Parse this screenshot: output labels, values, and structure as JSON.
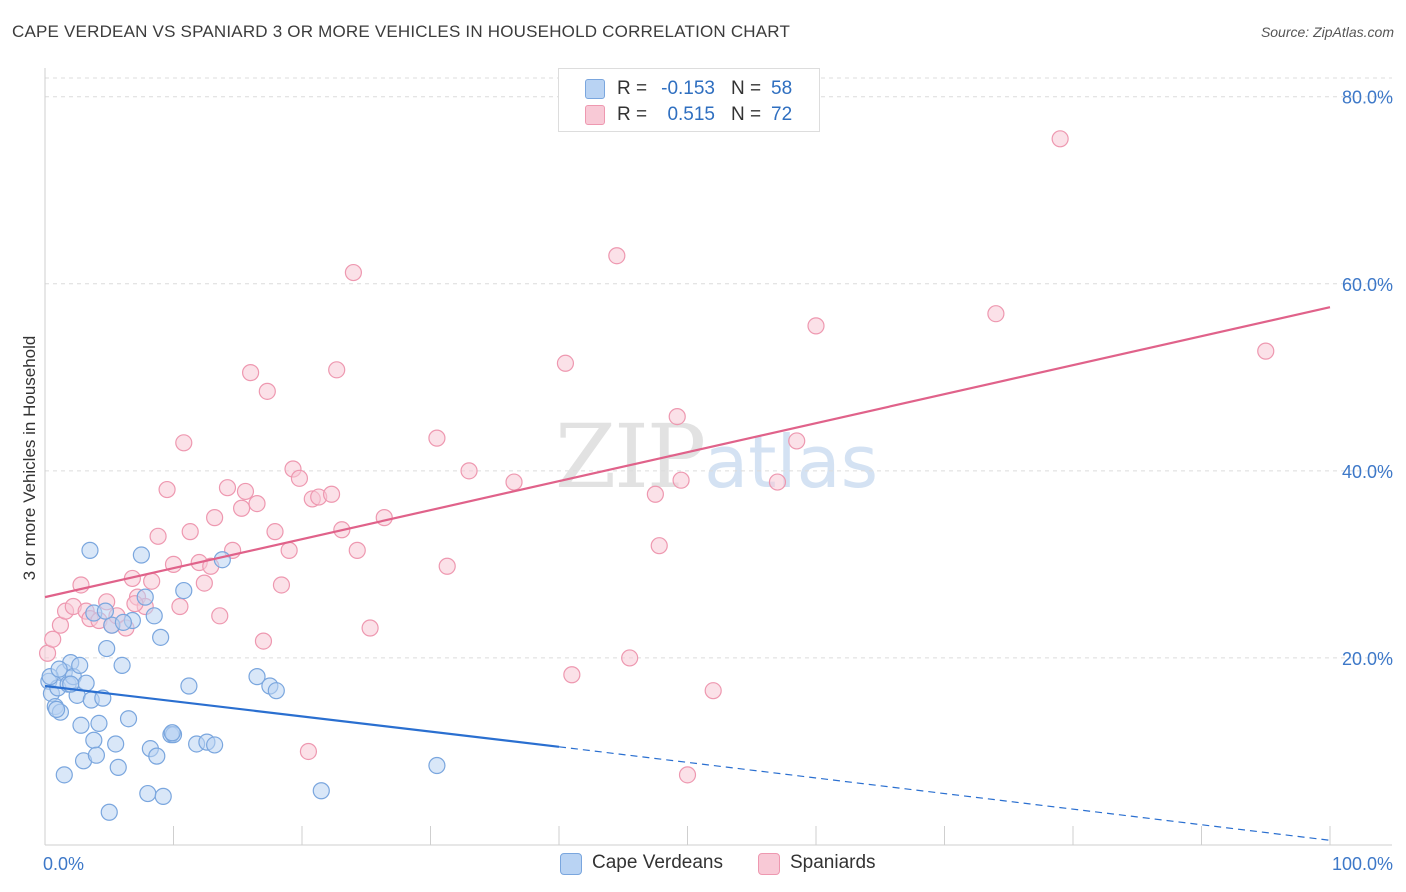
{
  "header": {
    "title": "CAPE VERDEAN VS SPANIARD 3 OR MORE VEHICLES IN HOUSEHOLD CORRELATION CHART",
    "source": "Source: ZipAtlas.com"
  },
  "watermark": {
    "zip": "ZIP",
    "atlas": "atlas"
  },
  "legend": {
    "rows": [
      {
        "r_label": "R =",
        "r_value": "-0.153",
        "n_label": "N =",
        "n_value": "58"
      },
      {
        "r_label": "R =",
        "r_value": "0.515",
        "n_label": "N =",
        "n_value": "72"
      }
    ]
  },
  "colors": {
    "blue_fill": "#b9d3f3",
    "blue_stroke": "#7aa6de",
    "blue_line": "#2a6fd0",
    "pink_fill": "#f8c9d6",
    "pink_stroke": "#ee98b0",
    "pink_line": "#e0628a",
    "axis_label": "#3d78c8",
    "grid": "#dcdcdc"
  },
  "chart_data": {
    "type": "scatter",
    "title": "CAPE VERDEAN VS SPANIARD 3 OR MORE VEHICLES IN HOUSEHOLD CORRELATION CHART",
    "xlabel": "",
    "ylabel": "3 or more Vehicles in Household",
    "xlim": [
      0,
      100
    ],
    "ylim": [
      0,
      82
    ],
    "x_tick_labels": {
      "left": "0.0%",
      "right": "100.0%"
    },
    "y_ticks": [
      {
        "value": 20,
        "label": "20.0%"
      },
      {
        "value": 40,
        "label": "40.0%"
      },
      {
        "value": 60,
        "label": "60.0%"
      },
      {
        "value": 80,
        "label": "80.0%"
      }
    ],
    "series": [
      {
        "name": "Cape Verdeans",
        "color": "blue",
        "trend": {
          "x0": 0,
          "y0": 17.0,
          "x1": 40,
          "y1": 10.5,
          "dash_x1": 100,
          "dash_y1": 0.5
        },
        "points": [
          [
            0.3,
            17.5
          ],
          [
            0.5,
            16.2
          ],
          [
            0.8,
            14.8
          ],
          [
            1.0,
            16.8
          ],
          [
            1.2,
            14.2
          ],
          [
            1.5,
            18.5
          ],
          [
            1.8,
            17.2
          ],
          [
            2.0,
            19.5
          ],
          [
            2.2,
            18.0
          ],
          [
            2.5,
            16.0
          ],
          [
            2.7,
            19.2
          ],
          [
            2.8,
            12.8
          ],
          [
            3.0,
            9.0
          ],
          [
            3.2,
            17.3
          ],
          [
            3.5,
            31.5
          ],
          [
            3.6,
            15.5
          ],
          [
            3.8,
            11.2
          ],
          [
            4.0,
            9.6
          ],
          [
            4.2,
            13.0
          ],
          [
            4.5,
            15.7
          ],
          [
            4.8,
            21.0
          ],
          [
            5.0,
            3.5
          ],
          [
            5.2,
            23.5
          ],
          [
            5.5,
            10.8
          ],
          [
            5.7,
            8.3
          ],
          [
            6.0,
            19.2
          ],
          [
            6.5,
            13.5
          ],
          [
            6.8,
            24.0
          ],
          [
            7.5,
            31.0
          ],
          [
            7.8,
            26.5
          ],
          [
            8.0,
            5.5
          ],
          [
            8.2,
            10.3
          ],
          [
            8.5,
            24.5
          ],
          [
            8.7,
            9.5
          ],
          [
            9.0,
            22.2
          ],
          [
            9.2,
            5.2
          ],
          [
            9.8,
            11.8
          ],
          [
            10.0,
            11.8
          ],
          [
            10.8,
            27.2
          ],
          [
            11.2,
            17.0
          ],
          [
            11.8,
            10.8
          ],
          [
            12.6,
            11.0
          ],
          [
            13.2,
            10.7
          ],
          [
            13.8,
            30.5
          ],
          [
            16.5,
            18.0
          ],
          [
            17.5,
            17.0
          ],
          [
            18.0,
            16.5
          ],
          [
            1.5,
            7.5
          ],
          [
            3.8,
            24.8
          ],
          [
            2.0,
            17.2
          ],
          [
            0.9,
            14.5
          ],
          [
            0.4,
            18.0
          ],
          [
            1.1,
            18.8
          ],
          [
            6.1,
            23.8
          ],
          [
            21.5,
            5.8
          ],
          [
            30.5,
            8.5
          ],
          [
            9.9,
            12.0
          ],
          [
            4.7,
            25.0
          ]
        ]
      },
      {
        "name": "Spaniards",
        "color": "pink",
        "trend": {
          "x0": 0,
          "y0": 26.5,
          "x1": 100,
          "y1": 57.5
        },
        "points": [
          [
            0.2,
            20.5
          ],
          [
            0.6,
            22.0
          ],
          [
            1.2,
            23.5
          ],
          [
            1.6,
            25.0
          ],
          [
            2.2,
            25.5
          ],
          [
            2.8,
            27.8
          ],
          [
            3.2,
            25.0
          ],
          [
            3.5,
            24.2
          ],
          [
            4.2,
            24.0
          ],
          [
            4.8,
            26.0
          ],
          [
            5.2,
            23.5
          ],
          [
            5.6,
            24.5
          ],
          [
            6.3,
            23.2
          ],
          [
            6.8,
            28.5
          ],
          [
            7.2,
            26.5
          ],
          [
            7.8,
            25.5
          ],
          [
            8.3,
            28.2
          ],
          [
            8.8,
            33.0
          ],
          [
            9.5,
            38.0
          ],
          [
            10.0,
            30.0
          ],
          [
            10.5,
            25.5
          ],
          [
            10.8,
            43.0
          ],
          [
            11.3,
            33.5
          ],
          [
            12.0,
            30.2
          ],
          [
            12.4,
            28.0
          ],
          [
            12.9,
            29.8
          ],
          [
            13.2,
            35.0
          ],
          [
            13.6,
            24.5
          ],
          [
            14.2,
            38.2
          ],
          [
            14.6,
            31.5
          ],
          [
            15.3,
            36.0
          ],
          [
            15.6,
            37.8
          ],
          [
            16.0,
            50.5
          ],
          [
            16.5,
            36.5
          ],
          [
            17.0,
            21.8
          ],
          [
            17.3,
            48.5
          ],
          [
            17.9,
            33.5
          ],
          [
            18.4,
            27.8
          ],
          [
            19.0,
            31.5
          ],
          [
            19.3,
            40.2
          ],
          [
            19.8,
            39.2
          ],
          [
            20.5,
            10.0
          ],
          [
            20.8,
            37.0
          ],
          [
            21.3,
            37.2
          ],
          [
            22.3,
            37.5
          ],
          [
            22.7,
            50.8
          ],
          [
            23.1,
            33.7
          ],
          [
            24.3,
            31.5
          ],
          [
            24.0,
            61.2
          ],
          [
            25.3,
            23.2
          ],
          [
            26.4,
            35.0
          ],
          [
            30.5,
            43.5
          ],
          [
            31.3,
            29.8
          ],
          [
            33.0,
            40.0
          ],
          [
            36.5,
            38.8
          ],
          [
            40.5,
            51.5
          ],
          [
            41.0,
            18.2
          ],
          [
            44.5,
            63.0
          ],
          [
            45.5,
            20.0
          ],
          [
            47.5,
            37.5
          ],
          [
            47.8,
            32.0
          ],
          [
            49.2,
            45.8
          ],
          [
            49.5,
            39.0
          ],
          [
            50.0,
            7.5
          ],
          [
            52.0,
            16.5
          ],
          [
            57.0,
            38.8
          ],
          [
            58.5,
            43.2
          ],
          [
            60.0,
            55.5
          ],
          [
            74.0,
            56.8
          ],
          [
            79.0,
            75.5
          ],
          [
            95.0,
            52.8
          ],
          [
            7.0,
            25.8
          ]
        ]
      }
    ]
  },
  "bottom_legend": {
    "items": [
      {
        "label": "Cape Verdeans",
        "color": "blue"
      },
      {
        "label": "Spaniards",
        "color": "pink"
      }
    ]
  }
}
